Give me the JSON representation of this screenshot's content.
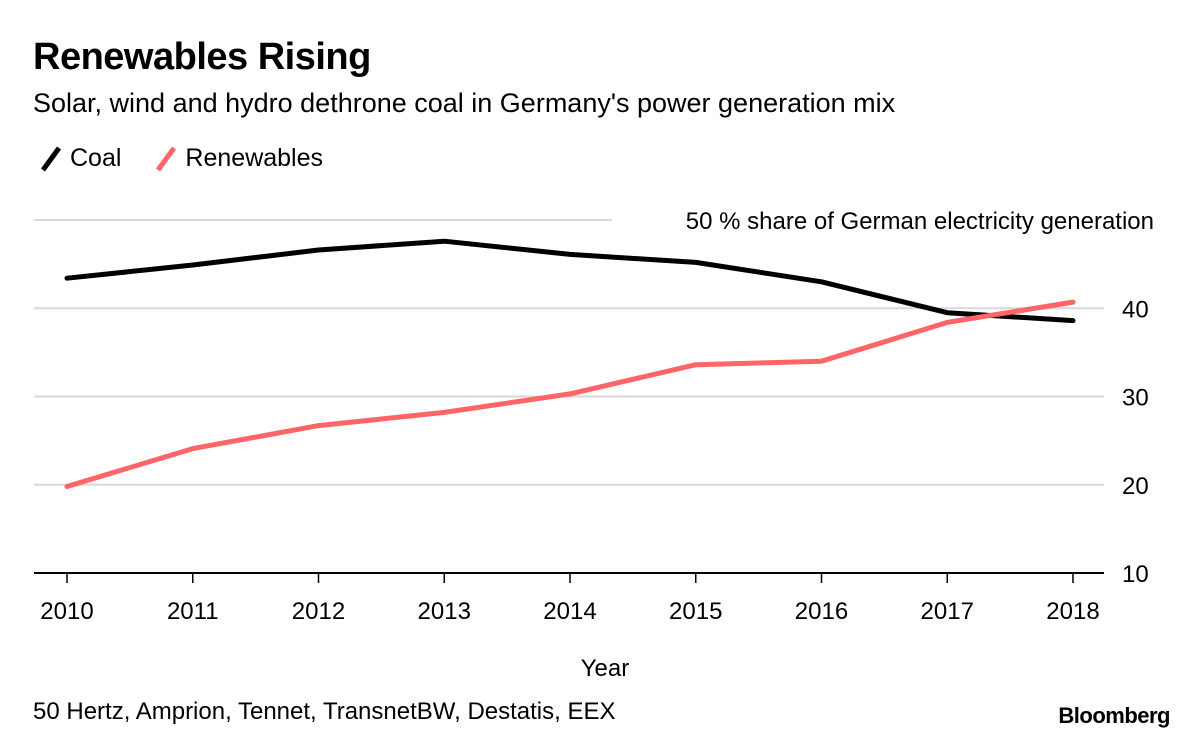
{
  "header": {
    "title": "Renewables Rising",
    "subtitle": "Solar, wind and hydro dethrone coal in Germany's power generation mix"
  },
  "footer": {
    "source": "50 Hertz, Amprion, Tennet, TransnetBW, Destatis, EEX",
    "brand": "Bloomberg"
  },
  "chart_data": {
    "type": "line",
    "title": "Renewables Rising",
    "subtitle": "Solar, wind and hydro dethrone coal in Germany's power generation mix",
    "xlabel": "Year",
    "ylabel": "% share of German electricity generation",
    "y_annotation": "50 % share of German electricity generation",
    "x": [
      "2010",
      "2011",
      "2012",
      "2013",
      "2014",
      "2015",
      "2016",
      "2017",
      "2018"
    ],
    "ylim": [
      10,
      50
    ],
    "yticks": [
      10,
      20,
      30,
      40,
      50
    ],
    "ytick_labels": [
      "10",
      "20",
      "30",
      "40",
      ""
    ],
    "grid": true,
    "y_axis_side": "right",
    "legend_placement": "top-left",
    "series": [
      {
        "name": "Coal",
        "color": "#000000",
        "values": [
          43.4,
          44.9,
          46.6,
          47.6,
          46.1,
          45.2,
          43.0,
          39.5,
          38.6
        ]
      },
      {
        "name": "Renewables",
        "color": "#ff6567",
        "values": [
          19.8,
          24.1,
          26.7,
          28.2,
          30.3,
          33.6,
          34.0,
          38.4,
          40.7
        ]
      }
    ]
  }
}
